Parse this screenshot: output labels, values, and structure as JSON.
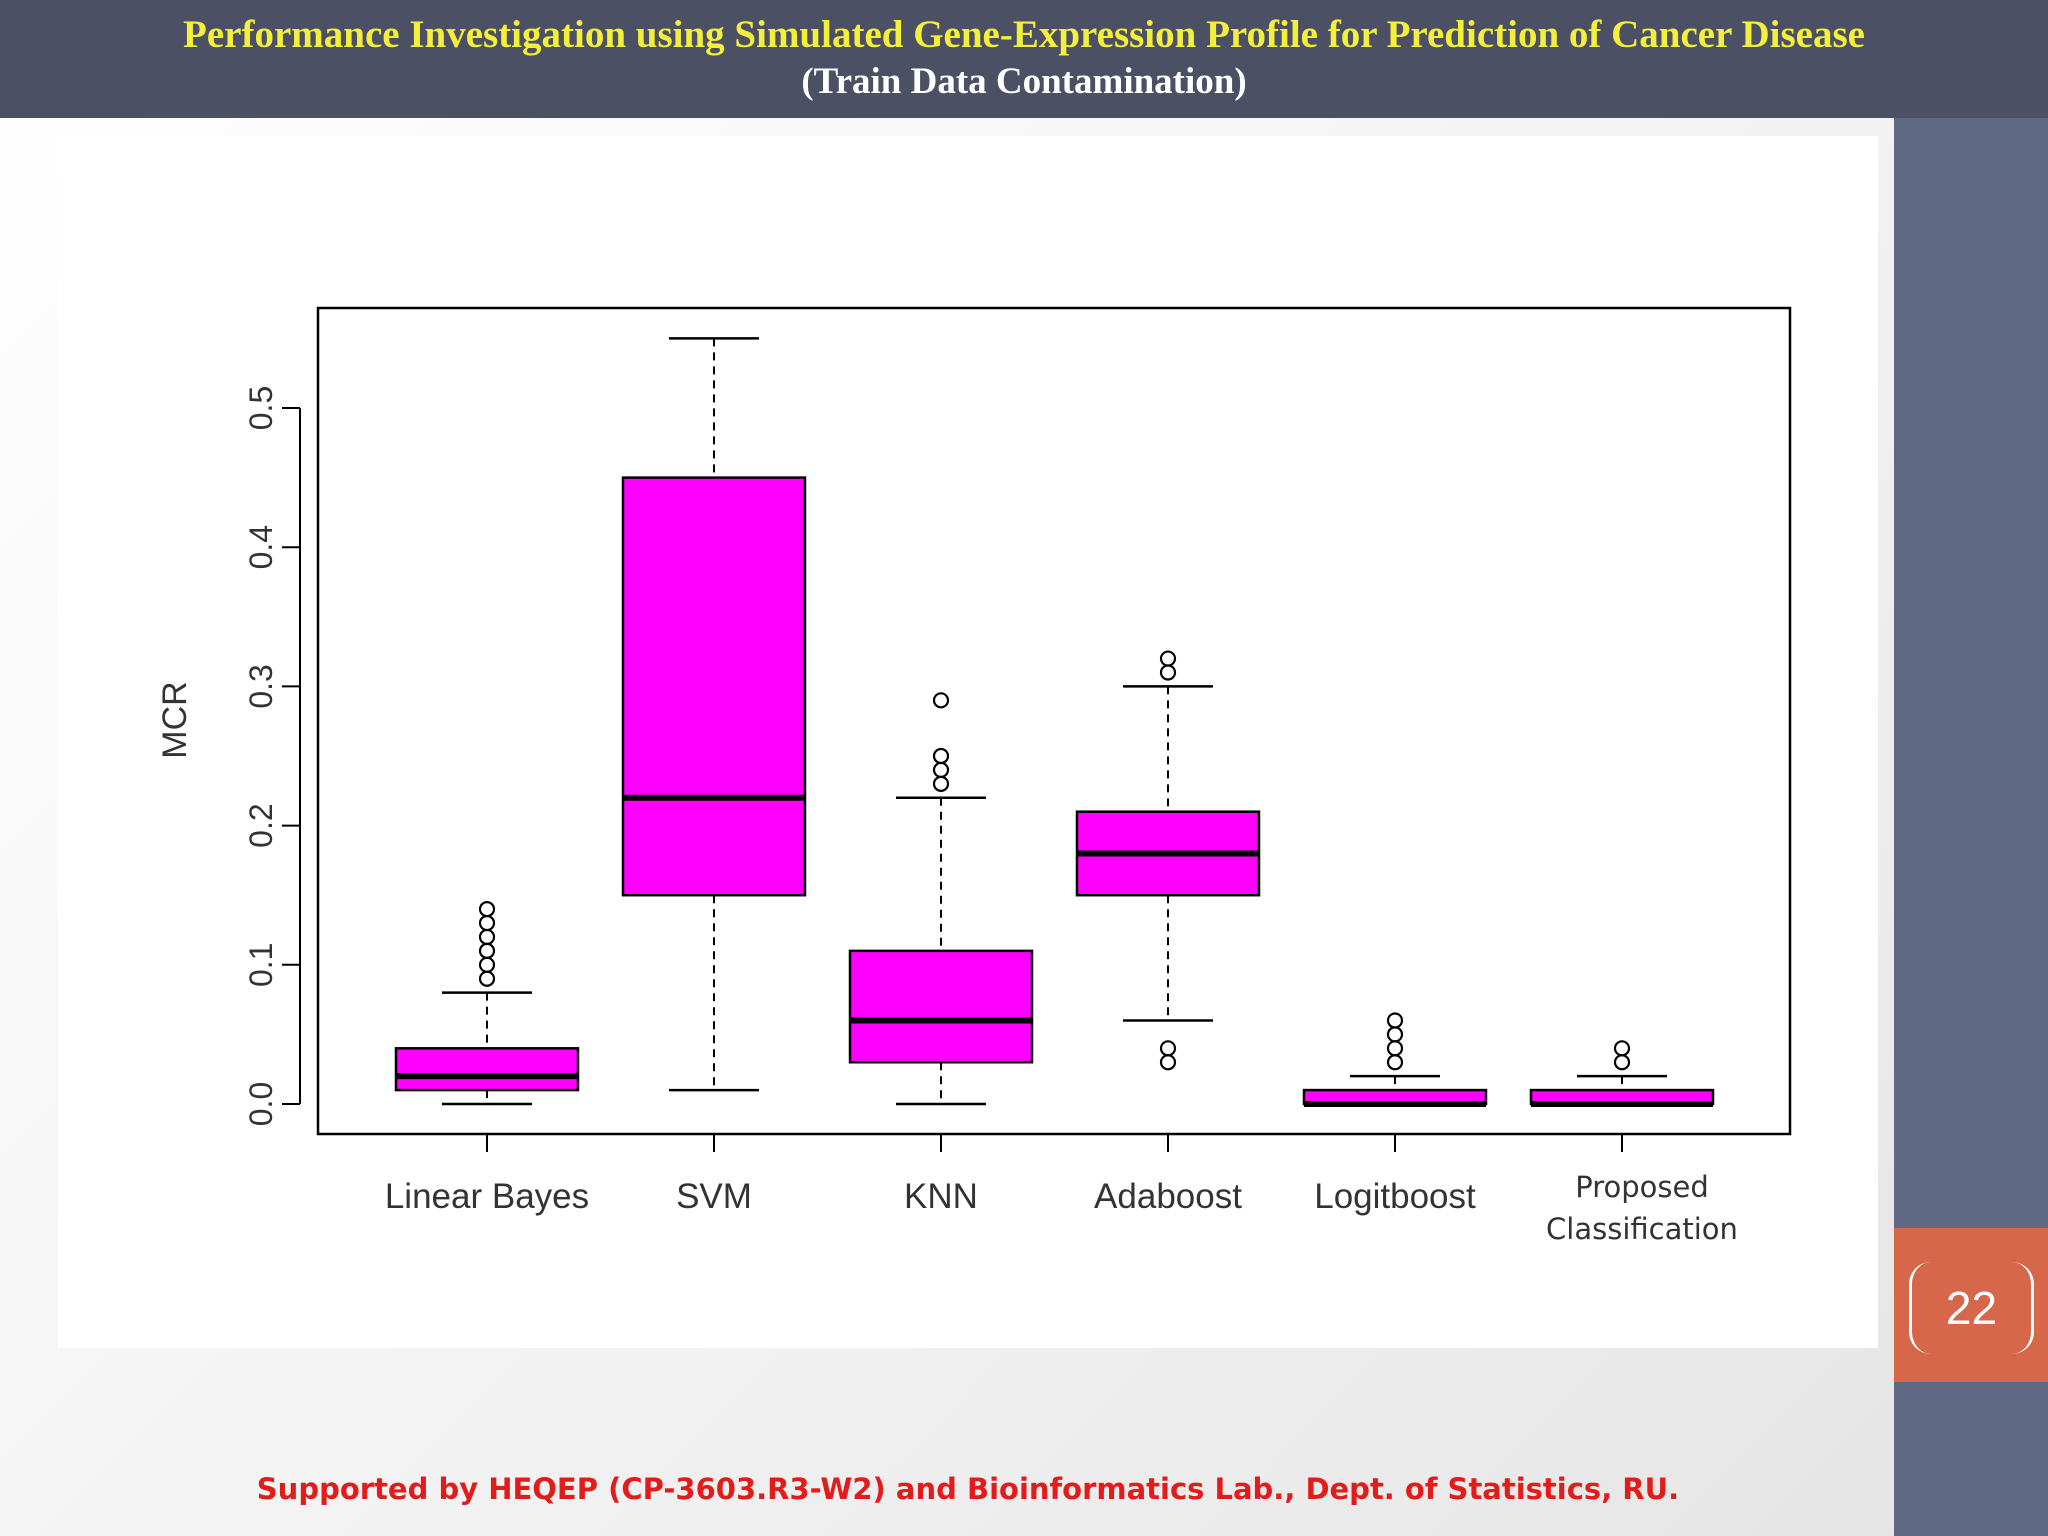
{
  "slide": {
    "title": "Performance Investigation using  Simulated Gene-Expression Profile for Prediction of Cancer Disease",
    "subtitle": "(Train Data Contamination)",
    "footer": "Supported by HEQEP (CP-3603.R3-W2) and Bioinformatics Lab., Dept. of Statistics, RU.",
    "page_number": "22",
    "colors": {
      "header_bg": "#4b5064",
      "title": "#f4ef3a",
      "subtitle": "#ffffff",
      "sidebar": "#5f6983",
      "page_badge": "#d6674b",
      "footer_text": "#e31b1b"
    }
  },
  "chart_data": {
    "type": "boxplot",
    "ylabel": "MCR",
    "xlabel": "",
    "ylim": [
      0,
      0.55
    ],
    "yticks": [
      "0.0",
      "0.1",
      "0.2",
      "0.3",
      "0.4",
      "0.5"
    ],
    "box_color": "#ff00ff",
    "grid": false,
    "categories": [
      {
        "label": [
          "Linear Bayes"
        ],
        "whisker_low": 0.0,
        "q1": 0.01,
        "median": 0.02,
        "q3": 0.04,
        "whisker_high": 0.08,
        "outliers": [
          0.09,
          0.1,
          0.11,
          0.12,
          0.13,
          0.14
        ]
      },
      {
        "label": [
          "SVM"
        ],
        "whisker_low": 0.01,
        "q1": 0.15,
        "median": 0.22,
        "q3": 0.45,
        "whisker_high": 0.55,
        "outliers": []
      },
      {
        "label": [
          "KNN"
        ],
        "whisker_low": 0.0,
        "q1": 0.03,
        "median": 0.06,
        "q3": 0.11,
        "whisker_high": 0.22,
        "outliers": [
          0.23,
          0.24,
          0.25,
          0.29
        ]
      },
      {
        "label": [
          "Adaboost"
        ],
        "whisker_low": 0.06,
        "q1": 0.15,
        "median": 0.18,
        "q3": 0.21,
        "whisker_high": 0.3,
        "outliers": [
          0.03,
          0.04,
          0.31,
          0.32
        ]
      },
      {
        "label": [
          "Logitboost"
        ],
        "whisker_low": 0.0,
        "q1": 0.0,
        "median": 0.0,
        "q3": 0.01,
        "whisker_high": 0.02,
        "outliers": [
          0.03,
          0.04,
          0.05,
          0.06
        ]
      },
      {
        "label": [
          "Proposed",
          "Classification"
        ],
        "whisker_low": 0.0,
        "q1": 0.0,
        "median": 0.0,
        "q3": 0.01,
        "whisker_high": 0.02,
        "outliers": [
          0.03,
          0.04
        ]
      }
    ]
  }
}
